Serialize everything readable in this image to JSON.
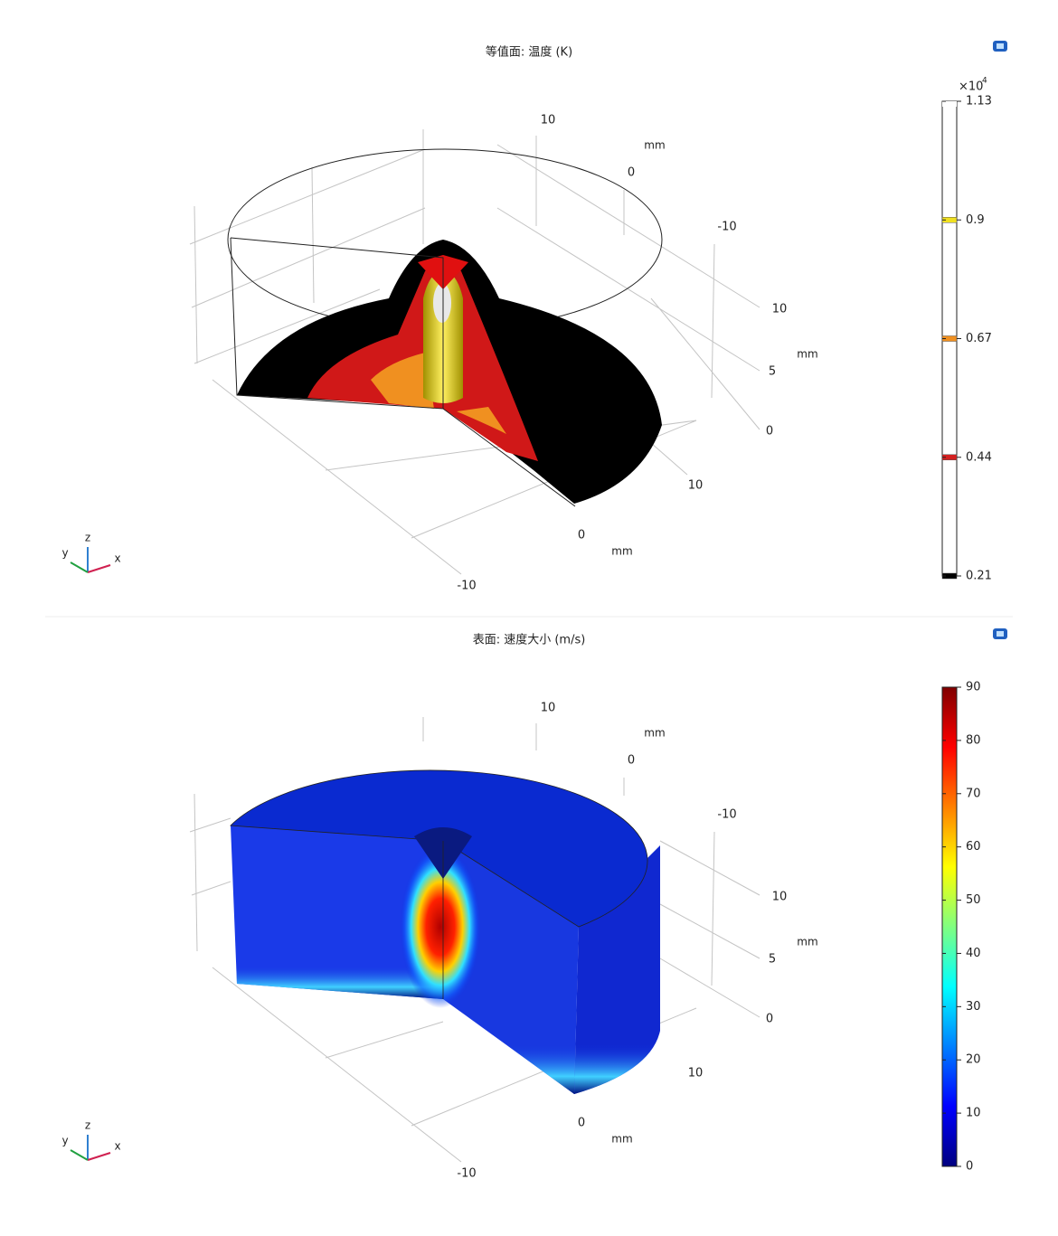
{
  "panels": [
    {
      "title": "等值面: 温度 (K)",
      "axes": {
        "x": {
          "ticks": [
            10,
            0,
            -10
          ],
          "unit": "mm"
        },
        "y": {
          "ticks": [
            10,
            0,
            -10
          ],
          "unit": "mm"
        },
        "z": {
          "ticks": [
            10,
            5,
            0
          ],
          "unit": "mm"
        }
      },
      "triad": [
        "x",
        "y",
        "z"
      ],
      "colorbar": {
        "multiplier": "×10",
        "exponent": "4",
        "range": [
          0.21,
          1.13
        ],
        "ticks": [
          0.21,
          0.44,
          0.67,
          0.9,
          1.13
        ],
        "level_colors": [
          "#000000",
          "#d42020",
          "#f09020",
          "#f0e020",
          "#ffffff"
        ]
      }
    },
    {
      "title": "表面: 速度大小 (m/s)",
      "axes": {
        "x": {
          "ticks": [
            10,
            0,
            -10
          ],
          "unit": "mm"
        },
        "y": {
          "ticks": [
            10,
            0,
            -10
          ],
          "unit": "mm"
        },
        "z": {
          "ticks": [
            10,
            5,
            0
          ],
          "unit": "mm"
        }
      },
      "triad": [
        "x",
        "y",
        "z"
      ],
      "colorbar": {
        "range": [
          0,
          90
        ],
        "ticks": [
          0,
          10,
          20,
          30,
          40,
          50,
          60,
          70,
          80,
          90
        ],
        "colormap": [
          "#00007f",
          "#0000ff",
          "#0080ff",
          "#00ffff",
          "#80ff80",
          "#ffff00",
          "#ff8000",
          "#ff0000",
          "#7f0000"
        ]
      }
    }
  ]
}
